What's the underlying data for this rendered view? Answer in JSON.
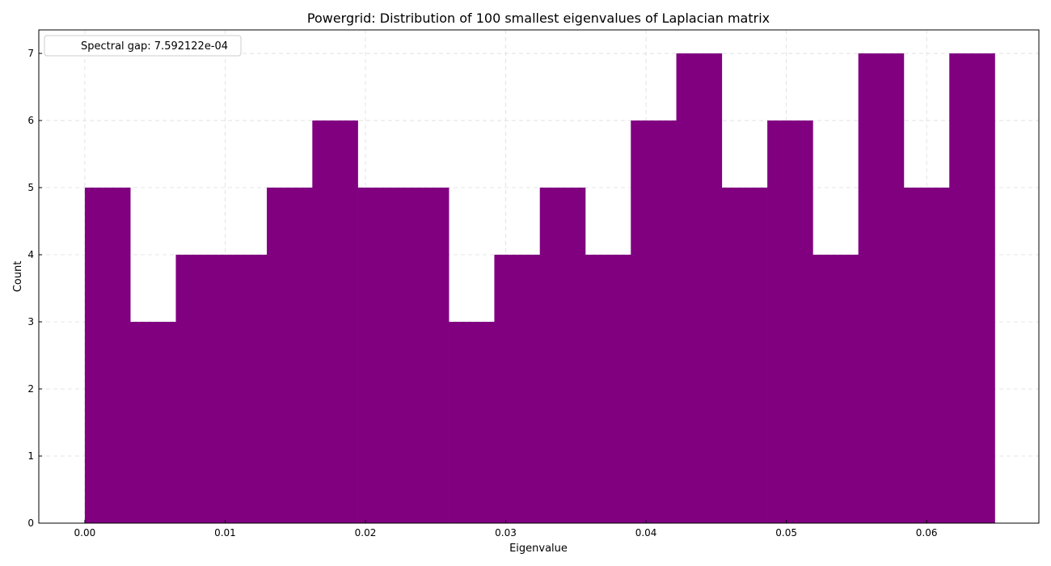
{
  "chart_data": {
    "type": "bar",
    "title": "Powergrid: Distribution of 100 smallest eigenvalues of Laplacian matrix",
    "xlabel": "Eigenvalue",
    "ylabel": "Count",
    "xlim": [
      -0.00328,
      0.068
    ],
    "ylim": [
      0,
      7.35
    ],
    "bin_start": 0.0,
    "bin_width": 0.003243,
    "values": [
      5,
      3,
      4,
      4,
      5,
      6,
      5,
      5,
      3,
      4,
      5,
      4,
      6,
      7,
      5,
      6,
      4,
      7,
      5,
      7
    ],
    "xticks": [
      0.0,
      0.01,
      0.02,
      0.03,
      0.04,
      0.05,
      0.06
    ],
    "xtick_labels": [
      "0.00",
      "0.01",
      "0.02",
      "0.03",
      "0.04",
      "0.05",
      "0.06"
    ],
    "yticks": [
      0,
      1,
      2,
      3,
      4,
      5,
      6,
      7
    ],
    "ytick_labels": [
      "0",
      "1",
      "2",
      "3",
      "4",
      "5",
      "6",
      "7"
    ],
    "bar_color": "#800080",
    "grid": true,
    "legend": {
      "placement": "top-left",
      "text": "Spectral gap: 7.592122e-04"
    }
  }
}
